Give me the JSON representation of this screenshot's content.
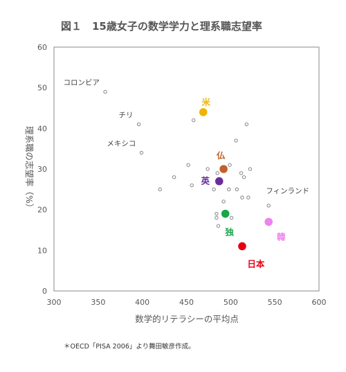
{
  "chart_data": {
    "type": "scatter",
    "title": "図１　15歳女子の数学学力と理系職志望率",
    "xlabel": "数学的リテラシーの平均点",
    "ylabel": "理系職の志望率（%）",
    "xlim": [
      300,
      600
    ],
    "ylim": [
      0,
      60
    ],
    "x_ticks": [
      300,
      350,
      400,
      450,
      500,
      550,
      600
    ],
    "y_ticks": [
      0,
      10,
      20,
      30,
      40,
      50,
      60
    ],
    "grid": false,
    "other_points": [
      {
        "x": 358,
        "y": 49,
        "label": "コロンビア"
      },
      {
        "x": 396,
        "y": 41,
        "label": "チリ"
      },
      {
        "x": 399,
        "y": 34,
        "label": "メキシコ"
      },
      {
        "x": 543,
        "y": 21,
        "label": "フィンランド"
      },
      {
        "x": 420,
        "y": 25
      },
      {
        "x": 436,
        "y": 28
      },
      {
        "x": 452,
        "y": 31
      },
      {
        "x": 456,
        "y": 26
      },
      {
        "x": 458,
        "y": 42
      },
      {
        "x": 474,
        "y": 30
      },
      {
        "x": 481,
        "y": 25
      },
      {
        "x": 485,
        "y": 29
      },
      {
        "x": 484,
        "y": 19
      },
      {
        "x": 484,
        "y": 18
      },
      {
        "x": 486,
        "y": 16
      },
      {
        "x": 492,
        "y": 22
      },
      {
        "x": 498,
        "y": 25
      },
      {
        "x": 499,
        "y": 31
      },
      {
        "x": 501,
        "y": 18
      },
      {
        "x": 506,
        "y": 37
      },
      {
        "x": 507,
        "y": 25
      },
      {
        "x": 512,
        "y": 29
      },
      {
        "x": 513,
        "y": 23
      },
      {
        "x": 515,
        "y": 28
      },
      {
        "x": 518,
        "y": 41
      },
      {
        "x": 520,
        "y": 23
      },
      {
        "x": 522,
        "y": 30
      }
    ],
    "highlighted_points": [
      {
        "name": "米",
        "x": 469,
        "y": 44,
        "color": "#f0b400"
      },
      {
        "name": "仏",
        "x": 492,
        "y": 30,
        "color": "#c0622a"
      },
      {
        "name": "英",
        "x": 487,
        "y": 27,
        "color": "#6a2e9a"
      },
      {
        "name": "独",
        "x": 494,
        "y": 19,
        "color": "#1aa64a"
      },
      {
        "name": "韓",
        "x": 543,
        "y": 17,
        "color": "#ee82ee"
      },
      {
        "name": "日本",
        "x": 513,
        "y": 11,
        "color": "#e60012"
      }
    ]
  },
  "source_note": "＊OECD「PISA 2006」より舞田敏彦作成。"
}
